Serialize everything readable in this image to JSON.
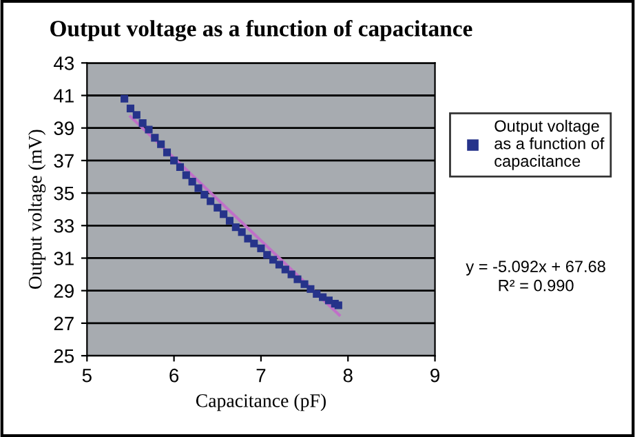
{
  "chart_data": {
    "type": "scatter",
    "title": "Output voltage as a function of capacitance",
    "xlabel": "Capacitance (pF)",
    "ylabel": "Output voltage (mV)",
    "series": [
      {
        "name": "Output voltage as a function of capacitance",
        "color": "#26338a",
        "marker": "square",
        "x": [
          5.43,
          5.5,
          5.57,
          5.64,
          5.71,
          5.78,
          5.85,
          5.92,
          6.0,
          6.07,
          6.14,
          6.21,
          6.28,
          6.35,
          6.42,
          6.5,
          6.57,
          6.64,
          6.71,
          6.78,
          6.85,
          6.92,
          7.0,
          7.07,
          7.14,
          7.21,
          7.28,
          7.35,
          7.42,
          7.5,
          7.57,
          7.64,
          7.71,
          7.78,
          7.85,
          7.89
        ],
        "values": [
          40.8,
          40.2,
          39.8,
          39.3,
          38.9,
          38.4,
          38.0,
          37.5,
          37.0,
          36.6,
          36.1,
          35.7,
          35.3,
          34.9,
          34.5,
          34.1,
          33.7,
          33.3,
          32.9,
          32.6,
          32.2,
          31.9,
          31.6,
          31.2,
          30.9,
          30.6,
          30.3,
          30.0,
          29.7,
          29.4,
          29.1,
          28.8,
          28.6,
          28.4,
          28.2,
          28.1
        ]
      },
      {
        "type": "line",
        "color": "#c070c8",
        "x": [
          5.5,
          7.9
        ],
        "values": [
          39.7,
          27.5
        ]
      }
    ],
    "xlim": [
      5,
      9
    ],
    "xticks": [
      5,
      6,
      7,
      8,
      9
    ],
    "ylim": [
      25,
      43
    ],
    "yticks": [
      25,
      27,
      29,
      31,
      33,
      35,
      37,
      39,
      41,
      43
    ],
    "grid": "y",
    "legend": "right",
    "annotations": [
      "y = -5.092x + 67.68",
      "R² = 0.990"
    ]
  }
}
